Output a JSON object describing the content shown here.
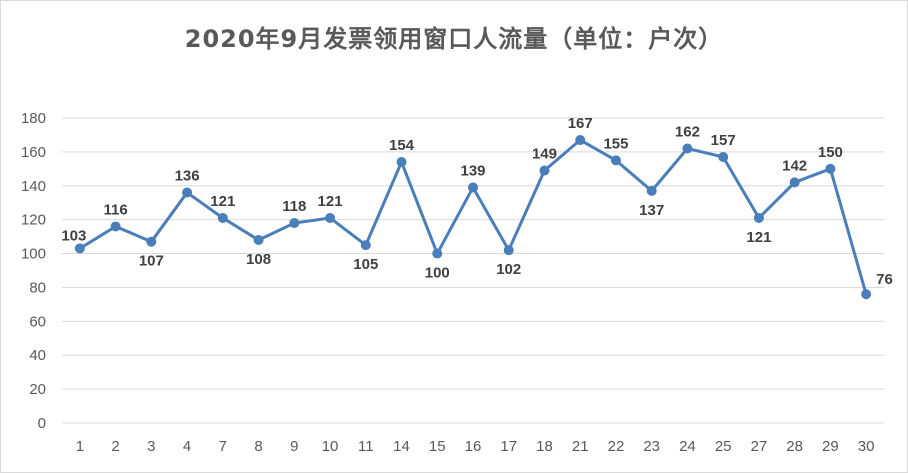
{
  "chart_data": {
    "type": "line",
    "title": "2020年9月发票领用窗口人流量（单位：户次）",
    "xlabel": "",
    "ylabel": "",
    "categories": [
      "1",
      "2",
      "3",
      "4",
      "7",
      "8",
      "9",
      "10",
      "11",
      "14",
      "15",
      "16",
      "17",
      "18",
      "21",
      "22",
      "23",
      "24",
      "25",
      "27",
      "28",
      "29",
      "30"
    ],
    "series": [
      {
        "values": [
          103,
          116,
          107,
          136,
          121,
          108,
          118,
          121,
          105,
          154,
          100,
          139,
          102,
          149,
          167,
          155,
          137,
          162,
          157,
          121,
          142,
          150,
          76
        ],
        "color": "#4a7ebb"
      }
    ],
    "yticks": [
      "0",
      "20",
      "40",
      "60",
      "80",
      "100",
      "120",
      "140",
      "160",
      "180"
    ],
    "ylim": [
      0,
      180
    ],
    "grid": true,
    "legend": "none",
    "colors": {
      "line": "#4a7ebb",
      "grid": "#d9d9d9",
      "text": "#595959"
    }
  }
}
